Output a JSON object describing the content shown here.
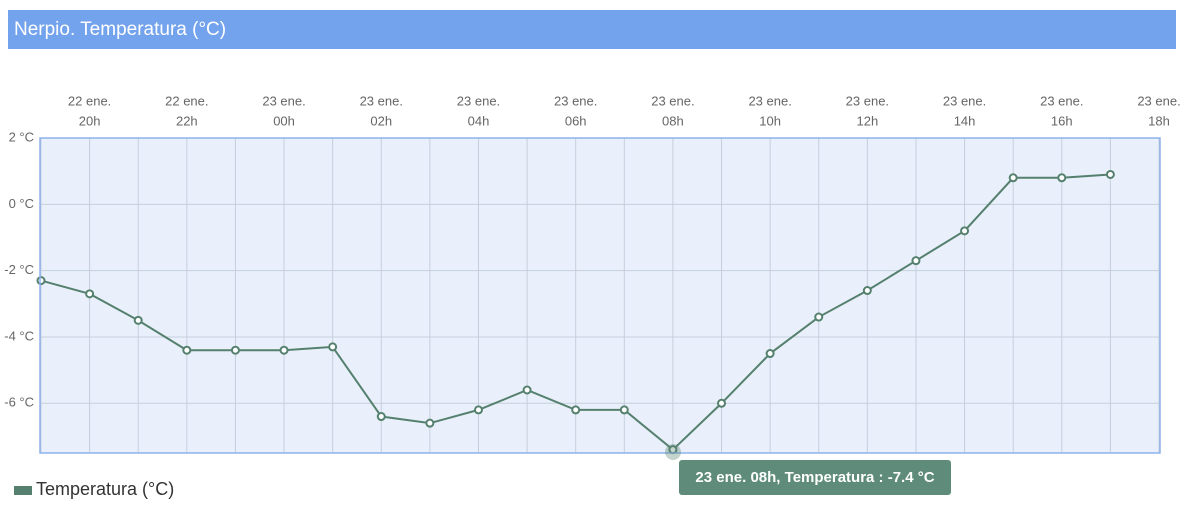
{
  "chart_data": {
    "type": "line",
    "title": "Nerpio. Temperatura (°C)",
    "categories": [
      null,
      [
        "22 ene.",
        "20h"
      ],
      null,
      [
        "22 ene.",
        "22h"
      ],
      null,
      [
        "23 ene.",
        "00h"
      ],
      null,
      [
        "23 ene.",
        "02h"
      ],
      null,
      [
        "23 ene.",
        "04h"
      ],
      null,
      [
        "23 ene.",
        "06h"
      ],
      null,
      [
        "23 ene.",
        "08h"
      ],
      null,
      [
        "23 ene.",
        "10h"
      ],
      null,
      [
        "23 ene.",
        "12h"
      ],
      null,
      [
        "23 ene.",
        "14h"
      ],
      null,
      [
        "23 ene.",
        "16h"
      ],
      null,
      [
        "23 ene.",
        "18h"
      ]
    ],
    "series": [
      {
        "name": "Temperatura (°C)",
        "color": "#55806e",
        "values": [
          -2.3,
          -2.7,
          -3.5,
          -4.4,
          -4.4,
          -4.4,
          -4.3,
          -6.4,
          -6.6,
          -6.2,
          -5.6,
          -6.2,
          -6.2,
          -7.4,
          -6.0,
          -4.5,
          -3.4,
          -2.6,
          -1.7,
          -0.8,
          0.8,
          0.8,
          0.9,
          null
        ]
      }
    ],
    "ylim": [
      -7.5,
      2
    ],
    "yticks": [
      {
        "value": 2,
        "label": "2 °C"
      },
      {
        "value": 0,
        "label": "0 °C"
      },
      {
        "value": -2,
        "label": "-2 °C"
      },
      {
        "value": -4,
        "label": "-4 °C"
      },
      {
        "value": -6,
        "label": "-6 °C"
      }
    ],
    "grid": true,
    "tooltip": "23 ene. 08h, Temperatura : -7.4 °C"
  }
}
